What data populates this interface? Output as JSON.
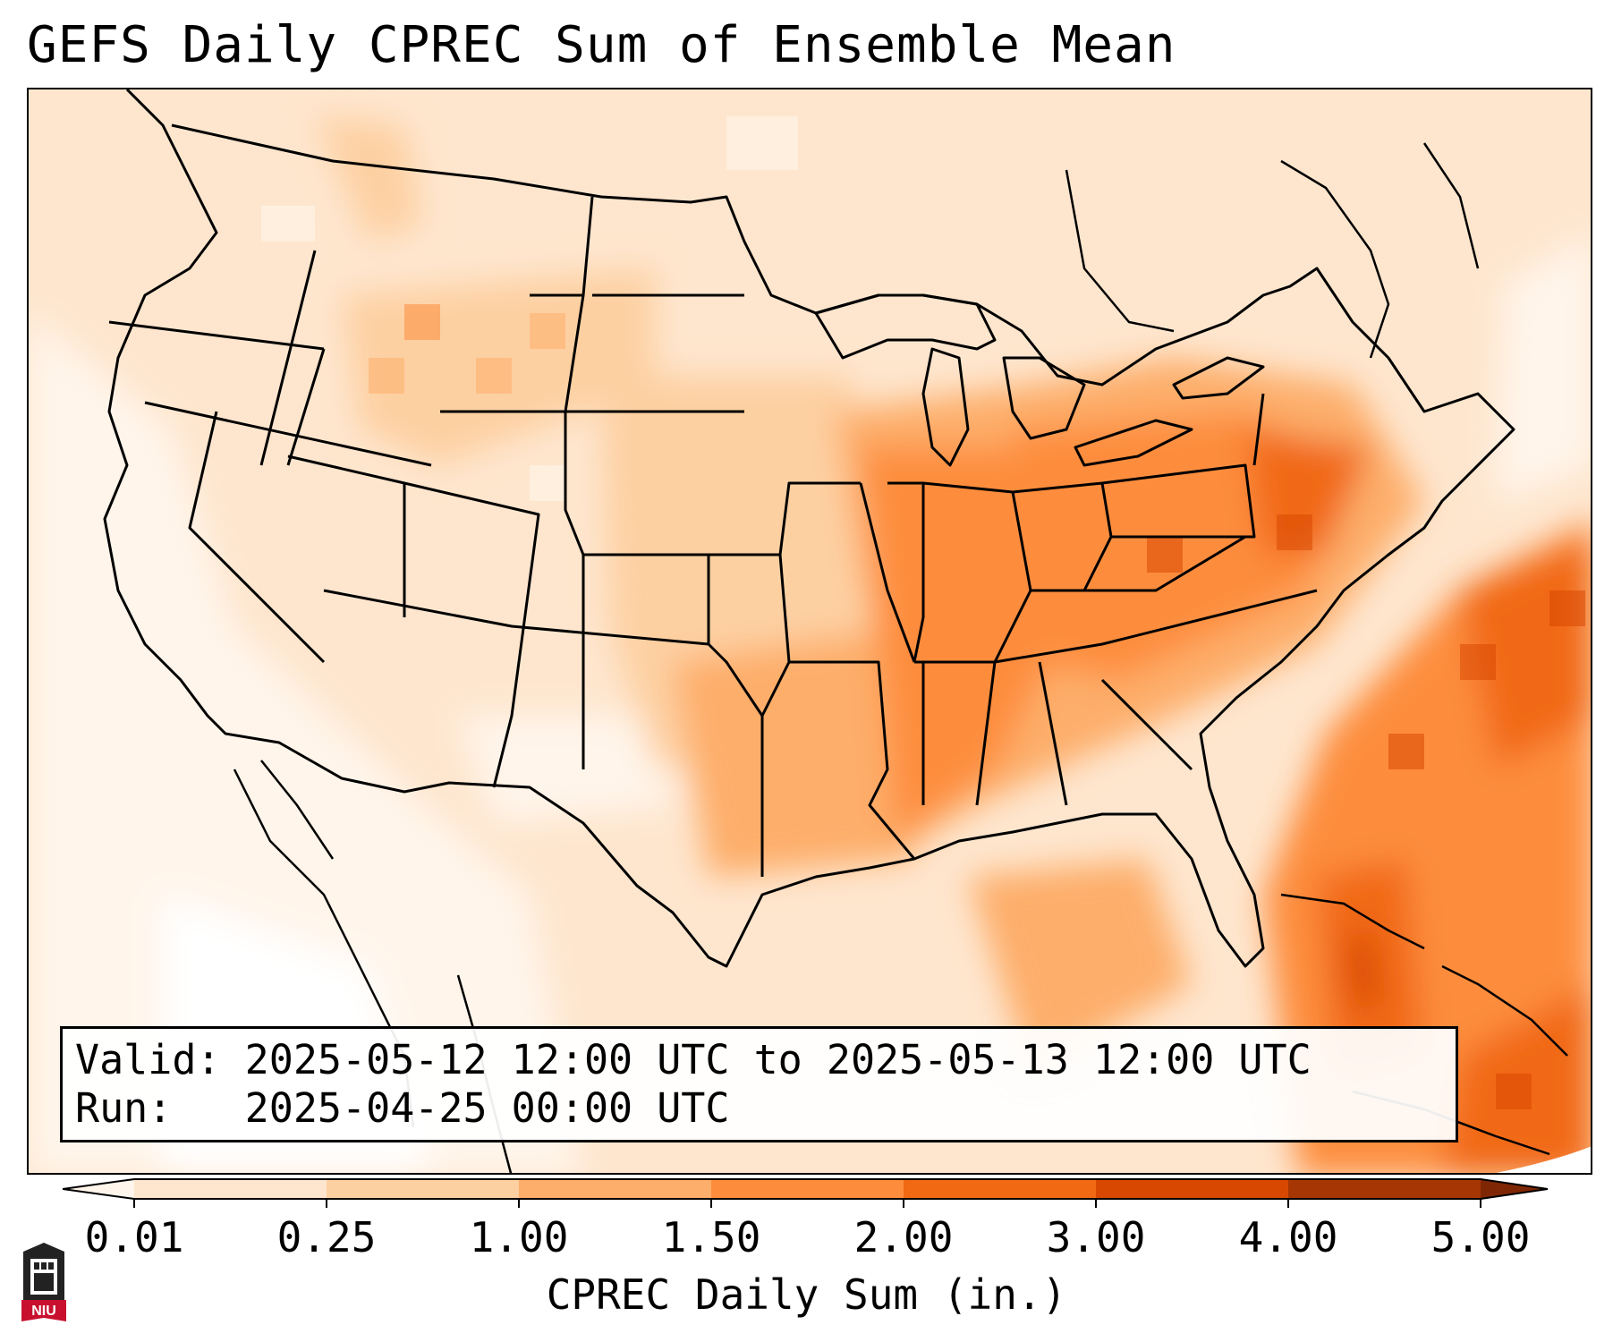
{
  "title": "GEFS Daily CPREC Sum of Ensemble Mean",
  "info": {
    "valid_line": "Valid: 2025-05-12 12:00 UTC to 2025-05-13 12:00 UTC",
    "run_line": "Run:   2025-04-25 00:00 UTC"
  },
  "colorbar": {
    "label": "CPREC Daily Sum (in.)",
    "ticks": [
      "0.01",
      "0.25",
      "1.00",
      "1.50",
      "2.00",
      "3.00",
      "4.00",
      "5.00"
    ],
    "colors": [
      "#fff5eb",
      "#fee6ce",
      "#fdd0a2",
      "#fdae6b",
      "#fd8d3c",
      "#f16913",
      "#d94801",
      "#a63603",
      "#7f2704"
    ]
  },
  "logo": {
    "text": "NIU",
    "color": "#c8102e"
  }
}
